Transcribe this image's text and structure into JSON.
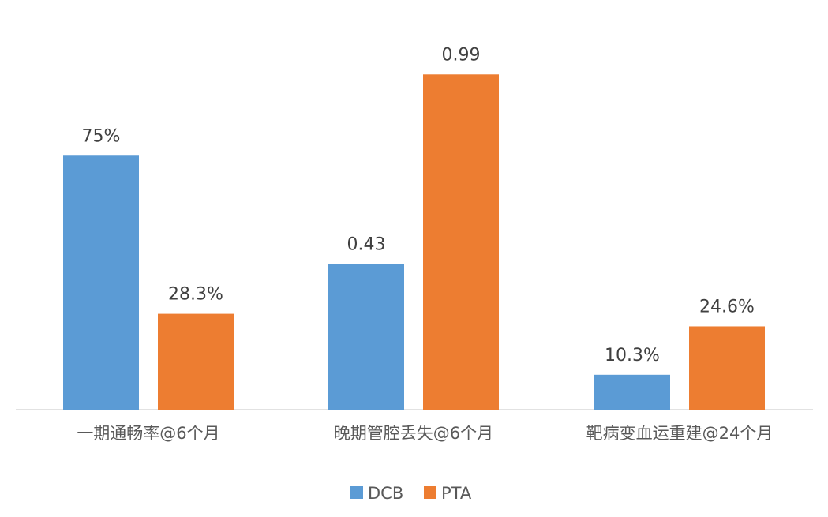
{
  "chart_data": {
    "type": "bar",
    "categories": [
      "一期通畅率@6个月",
      "晚期管腔丢失@6个月",
      "靶病变血运重建@24个月"
    ],
    "series": [
      {
        "name": "DCB",
        "values": [
          0.75,
          0.43,
          0.103
        ],
        "labels": [
          "75%",
          "0.43",
          "10.3%"
        ],
        "color": "#5B9BD5"
      },
      {
        "name": "PTA",
        "values": [
          0.283,
          0.99,
          0.246
        ],
        "labels": [
          "28.3%",
          "0.99",
          "24.6%"
        ],
        "color": "#ED7D31"
      }
    ],
    "ylim": [
      0,
      1.0
    ],
    "grid": false,
    "legend_position": "bottom"
  }
}
